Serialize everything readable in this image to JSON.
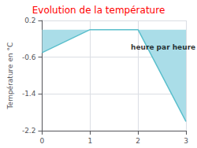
{
  "chart_data": {
    "type": "line",
    "title": "Evolution de la température",
    "title_color": "#ff0000",
    "ylabel": "Température en °C",
    "x": [
      0,
      1,
      2,
      3
    ],
    "values": [
      -0.5,
      0.0,
      0.0,
      -2.0
    ],
    "color": "#5bbfcc",
    "fill_color": "#aadde8",
    "xlim": [
      0,
      3
    ],
    "xticks": [
      0,
      1,
      2,
      3
    ],
    "ylim": [
      -2.2,
      0.2
    ],
    "yticks": [
      0.2,
      -0.6,
      -1.4,
      -2.2
    ],
    "grid": true,
    "annotations": [
      {
        "text": "heure par heure",
        "x": 1.85,
        "y": -0.38
      }
    ]
  }
}
